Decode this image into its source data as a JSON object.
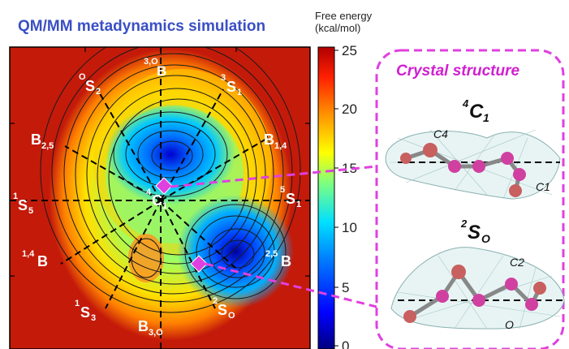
{
  "title": "QM/MM metadynamics simulation",
  "colorbar": {
    "title_line1": "Free energy",
    "title_line2": "(kcal/mol)",
    "ticks": [
      "25",
      "20",
      "15",
      "10",
      "5",
      "0"
    ],
    "colors": [
      "#00007f",
      "#0000ff",
      "#0080ff",
      "#00e0ff",
      "#7fff7f",
      "#ffff00",
      "#ff9000",
      "#ff2000",
      "#b00000"
    ]
  },
  "map_labels": {
    "B_3O_super": "3,O",
    "B_3O_main": "B",
    "S2_super": "O",
    "S2_main": "S",
    "S2_sub": "2",
    "S1_super": "3",
    "S1_main": "S",
    "S1_sub": "1",
    "B25_main": "B",
    "B25_sub": "2,5",
    "B14_main": "B",
    "B14_sub": "1,4",
    "S5_super": "1",
    "S5_main": "S",
    "S5_sub": "5",
    "C1_super": "4",
    "C1_main": "C",
    "C1_sub": "1",
    "S1r_super": "5",
    "S1r_main": "S",
    "S1r_sub": "1",
    "B14b_super": "1,4",
    "B14b_main": "B",
    "B25b_super": "2,5",
    "B25b_main": "B",
    "S3_super": "1",
    "S3_main": "S",
    "S3_sub": "3",
    "SO_super": "2",
    "SO_main": "S",
    "SO_sub": "O",
    "B3Ob_main": "B",
    "B3Ob_sub": "3,O"
  },
  "crystal": {
    "heading": "Crystal structure",
    "struct1_main": "C",
    "struct1_super": "4",
    "struct1_sub": "1",
    "struct1_atom_a": "C4",
    "struct1_atom_b": "C1",
    "struct2_main": "S",
    "struct2_super": "2",
    "struct2_sub": "O",
    "struct2_atom_a": "C2",
    "struct2_atom_b": "O"
  },
  "accent_colors": {
    "magenta": "#e040e0",
    "title_blue": "#3a4fc4"
  }
}
